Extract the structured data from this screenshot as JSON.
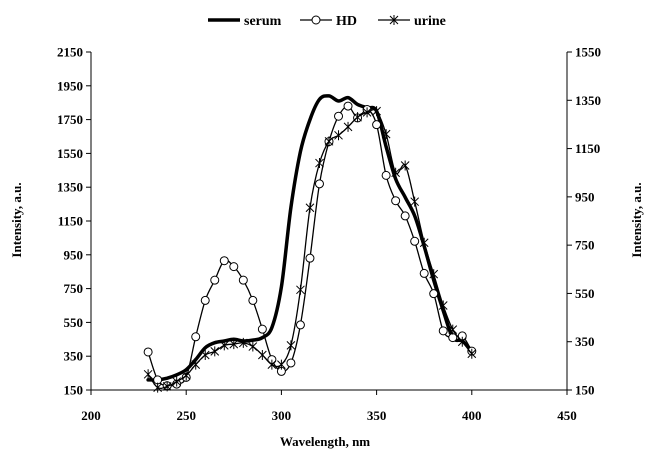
{
  "chart_data": {
    "type": "line",
    "title": "",
    "xlabel": "Wavelength, nm",
    "ylabel": "Intensity, a.u.",
    "y2label": "Intensity, a.u.",
    "xlim": [
      200,
      450
    ],
    "ylim": [
      150,
      2150
    ],
    "y2lim": [
      150,
      1550
    ],
    "x_ticks": [
      200,
      250,
      300,
      350,
      400,
      450
    ],
    "y_ticks": [
      150,
      350,
      550,
      750,
      950,
      1150,
      1350,
      1550,
      1750,
      1950,
      2150
    ],
    "y2_ticks": [
      150,
      350,
      550,
      750,
      950,
      1150,
      1350,
      1550
    ],
    "grid": false,
    "legend_position": "top-center",
    "series": [
      {
        "name": "serum",
        "axis": "left",
        "marker": "none",
        "color": "#000000",
        "points": [
          [
            230,
            210
          ],
          [
            235,
            210
          ],
          [
            240,
            220
          ],
          [
            245,
            240
          ],
          [
            250,
            270
          ],
          [
            255,
            330
          ],
          [
            260,
            400
          ],
          [
            265,
            430
          ],
          [
            270,
            440
          ],
          [
            275,
            450
          ],
          [
            280,
            440
          ],
          [
            285,
            445
          ],
          [
            290,
            460
          ],
          [
            295,
            520
          ],
          [
            300,
            760
          ],
          [
            305,
            1230
          ],
          [
            310,
            1560
          ],
          [
            315,
            1750
          ],
          [
            320,
            1870
          ],
          [
            325,
            1890
          ],
          [
            330,
            1860
          ],
          [
            335,
            1880
          ],
          [
            340,
            1840
          ],
          [
            345,
            1820
          ],
          [
            350,
            1800
          ],
          [
            355,
            1590
          ],
          [
            360,
            1400
          ],
          [
            365,
            1290
          ],
          [
            370,
            1180
          ],
          [
            375,
            1000
          ],
          [
            380,
            800
          ],
          [
            385,
            620
          ],
          [
            390,
            460
          ],
          [
            395,
            440
          ],
          [
            400,
            380
          ]
        ]
      },
      {
        "name": "HD",
        "axis": "left",
        "marker": "circle",
        "color": "#000000",
        "points": [
          [
            230,
            375
          ],
          [
            235,
            210
          ],
          [
            240,
            175
          ],
          [
            245,
            185
          ],
          [
            250,
            225
          ],
          [
            255,
            465
          ],
          [
            260,
            680
          ],
          [
            265,
            800
          ],
          [
            270,
            915
          ],
          [
            275,
            880
          ],
          [
            280,
            800
          ],
          [
            285,
            680
          ],
          [
            290,
            510
          ],
          [
            295,
            330
          ],
          [
            300,
            260
          ],
          [
            305,
            310
          ],
          [
            310,
            535
          ],
          [
            315,
            930
          ],
          [
            320,
            1370
          ],
          [
            325,
            1620
          ],
          [
            330,
            1770
          ],
          [
            335,
            1830
          ],
          [
            340,
            1760
          ],
          [
            345,
            1810
          ],
          [
            350,
            1720
          ],
          [
            355,
            1420
          ],
          [
            360,
            1270
          ],
          [
            365,
            1180
          ],
          [
            370,
            1030
          ],
          [
            375,
            840
          ],
          [
            380,
            720
          ],
          [
            385,
            500
          ],
          [
            390,
            460
          ],
          [
            395,
            470
          ],
          [
            400,
            380
          ]
        ]
      },
      {
        "name": "urine",
        "axis": "right",
        "marker": "x",
        "color": "#000000",
        "points": [
          [
            230,
            215
          ],
          [
            235,
            160
          ],
          [
            240,
            165
          ],
          [
            245,
            185
          ],
          [
            250,
            210
          ],
          [
            255,
            255
          ],
          [
            260,
            295
          ],
          [
            265,
            310
          ],
          [
            270,
            335
          ],
          [
            275,
            340
          ],
          [
            280,
            345
          ],
          [
            285,
            330
          ],
          [
            290,
            295
          ],
          [
            295,
            255
          ],
          [
            300,
            255
          ],
          [
            305,
            335
          ],
          [
            310,
            565
          ],
          [
            315,
            905
          ],
          [
            320,
            1090
          ],
          [
            325,
            1180
          ],
          [
            330,
            1205
          ],
          [
            335,
            1240
          ],
          [
            340,
            1280
          ],
          [
            345,
            1300
          ],
          [
            350,
            1305
          ],
          [
            355,
            1210
          ],
          [
            360,
            1050
          ],
          [
            365,
            1080
          ],
          [
            370,
            930
          ],
          [
            375,
            760
          ],
          [
            380,
            630
          ],
          [
            385,
            500
          ],
          [
            390,
            400
          ],
          [
            395,
            350
          ],
          [
            400,
            300
          ]
        ]
      }
    ]
  }
}
